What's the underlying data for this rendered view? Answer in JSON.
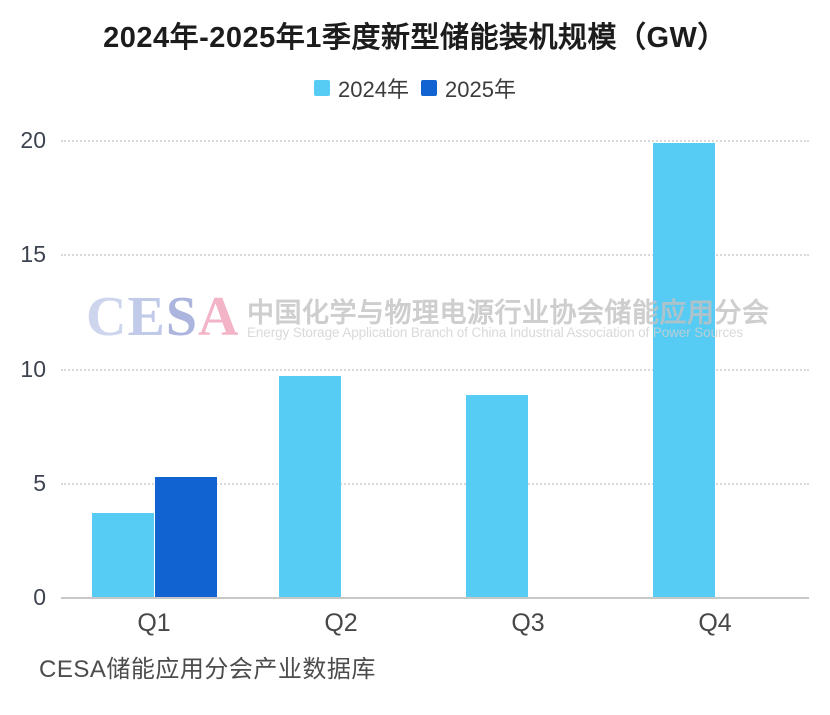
{
  "title": "2024年-2025年1季度新型储能装机规模（GW）",
  "legend": {
    "items": [
      {
        "label": "2024年",
        "color": "#56CBF3"
      },
      {
        "label": "2025年",
        "color": "#1163D2"
      }
    ]
  },
  "watermark": {
    "logo_letters": [
      "C",
      "E",
      "S",
      "A"
    ],
    "logo_colors": [
      "#C3CCEA",
      "#B3BEE5",
      "#98A3D7",
      "#EFA2B9"
    ],
    "cn": "中国化学与物理电源行业协会储能应用分会",
    "en": "Energy Storage Application Branch of China Industrial Association of Power Sources"
  },
  "footer": {
    "source": "CESA储能应用分会产业数据库"
  },
  "chart_data": {
    "type": "bar",
    "title": "2024年-2025年1季度新型储能装机规模（GW）",
    "categories": [
      "Q1",
      "Q2",
      "Q3",
      "Q4"
    ],
    "series": [
      {
        "name": "2024年",
        "color": "#56CBF3",
        "values": [
          3.7,
          9.7,
          8.9,
          19.9
        ]
      },
      {
        "name": "2025年",
        "color": "#1163D2",
        "values": [
          5.3,
          null,
          null,
          null
        ]
      }
    ],
    "xlabel": "",
    "ylabel": "",
    "unit": "GW",
    "ylim": [
      0,
      20
    ],
    "yticks": [
      0,
      5,
      10,
      15,
      20
    ],
    "grid": "horizontal-dotted",
    "legend_position": "top-center",
    "source": "CESA储能应用分会产业数据库"
  }
}
